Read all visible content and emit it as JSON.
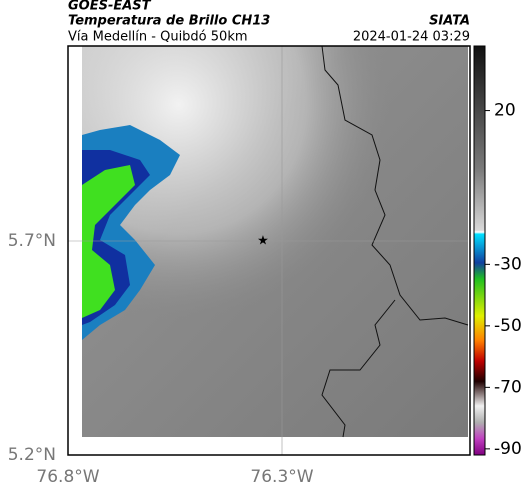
{
  "header": {
    "line1": "GOES-EAST",
    "line2": "Temperatura de Brillo CH13",
    "line3": "Vía Medellín - Quibdó 50km",
    "source": "SIATA",
    "datetime": "2024-01-24 03:29"
  },
  "axes": {
    "lat_labels": [
      "5.7°N",
      "5.2°N"
    ],
    "lon_labels": [
      "76.8°W",
      "76.3°W"
    ]
  },
  "colorbar": {
    "range": [
      -92,
      41
    ],
    "ticks": [
      20,
      -30,
      -50,
      -70,
      -90
    ]
  }
}
